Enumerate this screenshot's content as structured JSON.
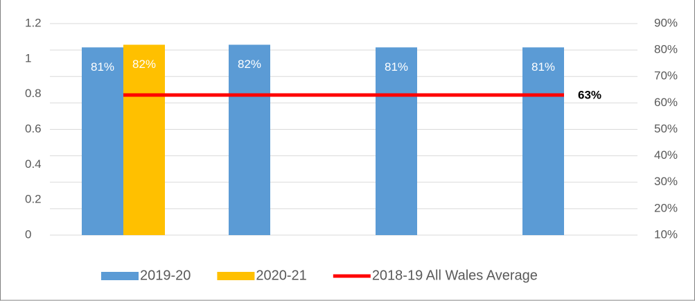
{
  "chart_data": {
    "type": "bar",
    "categories": [
      null,
      null,
      null,
      null
    ],
    "series": [
      {
        "name": "2019-20",
        "color": "#5b9bd5",
        "axis": "y2",
        "values": [
          81,
          82,
          81,
          81
        ],
        "value_labels": [
          "81%",
          "82%",
          "81%",
          "81%"
        ]
      },
      {
        "name": "2020-21",
        "color": "#ffc000",
        "axis": "y2",
        "values": [
          82,
          null,
          null,
          null
        ],
        "value_labels": [
          "82%",
          null,
          null,
          null
        ]
      },
      {
        "name": "2018-19 All Wales Average",
        "type": "line",
        "color": "#ff0000",
        "axis": "y2",
        "values": [
          63,
          63,
          63,
          63
        ],
        "value_labels": [
          null,
          null,
          null,
          "63%"
        ]
      }
    ],
    "ylim": [
      0,
      1.2
    ],
    "yticks": [
      0,
      0.2,
      0.4,
      0.6,
      0.8,
      1,
      1.2
    ],
    "y2lim": [
      10,
      90
    ],
    "y2ticks": [
      {
        "value": 10,
        "label": "10%"
      },
      {
        "value": 20,
        "label": "20%"
      },
      {
        "value": 30,
        "label": "30%"
      },
      {
        "value": 40,
        "label": "40%"
      },
      {
        "value": 50,
        "label": "50%"
      },
      {
        "value": 60,
        "label": "60%"
      },
      {
        "value": 70,
        "label": "70%"
      },
      {
        "value": 80,
        "label": "80%"
      },
      {
        "value": 90,
        "label": "90%"
      }
    ],
    "grid": true,
    "legend": "bottom"
  }
}
